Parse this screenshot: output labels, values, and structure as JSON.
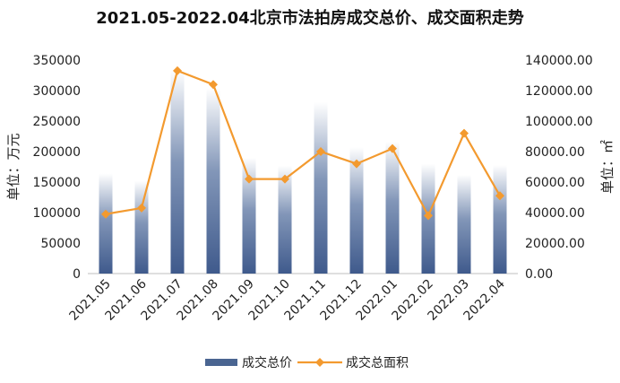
{
  "chart_data": {
    "type": "bar",
    "title": "2021.05-2022.04北京市法拍房成交总价、成交面积走势",
    "categories": [
      "2021.05",
      "2021.06",
      "2021.07",
      "2021.08",
      "2021.09",
      "2021.10",
      "2021.11",
      "2021.12",
      "2022.01",
      "2022.02",
      "2022.03",
      "2022.04"
    ],
    "series": [
      {
        "name": "成交总价",
        "type": "bar",
        "axis": "left",
        "color": "#4a6591",
        "values": [
          164000,
          152000,
          334000,
          304000,
          190000,
          177000,
          281000,
          207000,
          216000,
          180000,
          162000,
          178000
        ]
      },
      {
        "name": "成交总面积",
        "type": "line",
        "axis": "right",
        "color": "#f39a2f",
        "values": [
          39000,
          43000,
          133000,
          124000,
          62000,
          62000,
          80000,
          72000,
          82000,
          38000,
          92000,
          51000
        ]
      }
    ],
    "y_left": {
      "label": "单位：万元",
      "min": 0,
      "max": 350000,
      "ticks": [
        "0",
        "50000",
        "100000",
        "150000",
        "200000",
        "250000",
        "300000",
        "350000"
      ]
    },
    "y_right": {
      "label": "单位：㎡",
      "min": 0,
      "max": 140000,
      "ticks": [
        "0.00",
        "20000.00",
        "40000.00",
        "60000.00",
        "80000.00",
        "100000.00",
        "120000.00",
        "140000.00"
      ]
    },
    "grid": false,
    "legend": "bottom"
  }
}
